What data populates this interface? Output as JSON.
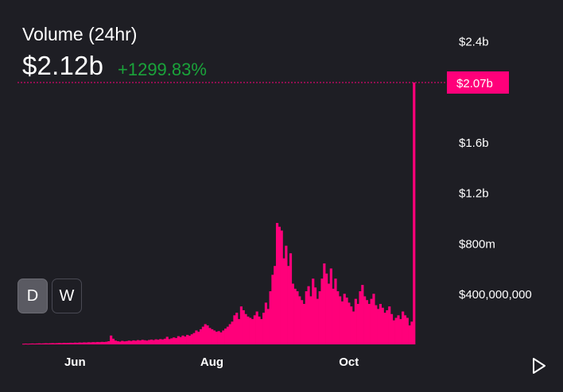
{
  "header": {
    "title": "Volume (24hr)",
    "value": "$2.12b",
    "change": "+1299.83%"
  },
  "controls": {
    "periods": [
      {
        "label": "D",
        "active": true
      },
      {
        "label": "W",
        "active": false
      }
    ]
  },
  "chart_data": {
    "type": "bar",
    "accent": "#ff007a",
    "change_color": "#1aa33a",
    "ylim": [
      0,
      2600000000
    ],
    "y_ticks": [
      {
        "label": "$2.4b",
        "value": 2400000000
      },
      {
        "label": "$1.6b",
        "value": 1600000000
      },
      {
        "label": "$1.2b",
        "value": 1200000000
      },
      {
        "label": "$800m",
        "value": 800000000
      },
      {
        "label": "$400,000,000",
        "value": 400000000
      }
    ],
    "x_ticks": [
      {
        "label": "Jun",
        "index": 23
      },
      {
        "label": "Aug",
        "index": 84
      },
      {
        "label": "Oct",
        "index": 145
      }
    ],
    "crosshair": {
      "label": "$2.07b",
      "value": 2070000000
    },
    "values": [
      5000000,
      6000000,
      5000000,
      6000000,
      7000000,
      6000000,
      7000000,
      8000000,
      7000000,
      8000000,
      9000000,
      8000000,
      9000000,
      10000000,
      9000000,
      10000000,
      11000000,
      10000000,
      12000000,
      11000000,
      12000000,
      13000000,
      12000000,
      14000000,
      13000000,
      15000000,
      14000000,
      16000000,
      15000000,
      17000000,
      16000000,
      18000000,
      17000000,
      19000000,
      18000000,
      20000000,
      19000000,
      21000000,
      25000000,
      70000000,
      45000000,
      30000000,
      25000000,
      22000000,
      28000000,
      24000000,
      26000000,
      30000000,
      27000000,
      32000000,
      29000000,
      34000000,
      31000000,
      36000000,
      33000000,
      30000000,
      35000000,
      38000000,
      34000000,
      40000000,
      37000000,
      42000000,
      39000000,
      45000000,
      60000000,
      42000000,
      48000000,
      55000000,
      50000000,
      65000000,
      58000000,
      70000000,
      62000000,
      75000000,
      68000000,
      80000000,
      90000000,
      110000000,
      100000000,
      120000000,
      140000000,
      160000000,
      150000000,
      130000000,
      120000000,
      110000000,
      100000000,
      105000000,
      95000000,
      110000000,
      125000000,
      140000000,
      160000000,
      180000000,
      230000000,
      250000000,
      200000000,
      300000000,
      270000000,
      240000000,
      220000000,
      210000000,
      200000000,
      230000000,
      260000000,
      220000000,
      200000000,
      250000000,
      330000000,
      280000000,
      420000000,
      550000000,
      620000000,
      960000000,
      930000000,
      900000000,
      680000000,
      780000000,
      620000000,
      720000000,
      480000000,
      440000000,
      420000000,
      380000000,
      350000000,
      320000000,
      420000000,
      460000000,
      380000000,
      520000000,
      450000000,
      360000000,
      420000000,
      520000000,
      640000000,
      560000000,
      480000000,
      600000000,
      440000000,
      520000000,
      420000000,
      380000000,
      340000000,
      400000000,
      370000000,
      330000000,
      300000000,
      260000000,
      360000000,
      320000000,
      420000000,
      470000000,
      380000000,
      350000000,
      320000000,
      360000000,
      400000000,
      310000000,
      280000000,
      320000000,
      290000000,
      250000000,
      270000000,
      300000000,
      240000000,
      190000000,
      210000000,
      230000000,
      200000000,
      260000000,
      230000000,
      210000000,
      150000000,
      180000000,
      2070000000
    ]
  }
}
